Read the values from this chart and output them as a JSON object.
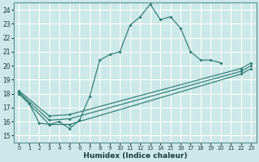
{
  "xlabel": "Humidex (Indice chaleur)",
  "bg_color": "#cce8e8",
  "grid_color": "#ffffff",
  "line_color": "#2e7d72",
  "xlim": [
    -0.5,
    23.5
  ],
  "ylim": [
    14.5,
    24.5
  ],
  "xticks": [
    0,
    1,
    2,
    3,
    4,
    5,
    6,
    7,
    8,
    9,
    10,
    11,
    12,
    13,
    14,
    15,
    16,
    17,
    18,
    19,
    20,
    21,
    22,
    23
  ],
  "yticks": [
    15,
    16,
    17,
    18,
    19,
    20,
    21,
    22,
    23,
    24
  ],
  "line1_x": [
    0,
    1,
    2,
    3,
    4,
    5,
    6,
    7,
    8,
    9,
    10,
    11,
    12,
    13,
    14,
    15,
    16,
    17,
    18,
    19,
    20
  ],
  "line1_y": [
    18.0,
    17.3,
    15.9,
    15.8,
    16.0,
    15.5,
    16.1,
    17.8,
    20.4,
    20.8,
    21.0,
    22.9,
    23.5,
    24.4,
    23.3,
    23.5,
    22.7,
    21.0,
    20.4,
    20.4,
    20.2
  ],
  "line2_x": [
    0,
    3,
    5,
    22,
    23
  ],
  "line2_y": [
    18.0,
    15.8,
    15.8,
    19.4,
    19.8
  ],
  "line3_x": [
    0,
    3,
    5,
    22,
    23
  ],
  "line3_y": [
    18.1,
    16.1,
    16.2,
    19.6,
    20.0
  ],
  "line4_x": [
    0,
    3,
    5,
    22,
    23
  ],
  "line4_y": [
    18.2,
    16.4,
    16.5,
    19.8,
    20.2
  ]
}
